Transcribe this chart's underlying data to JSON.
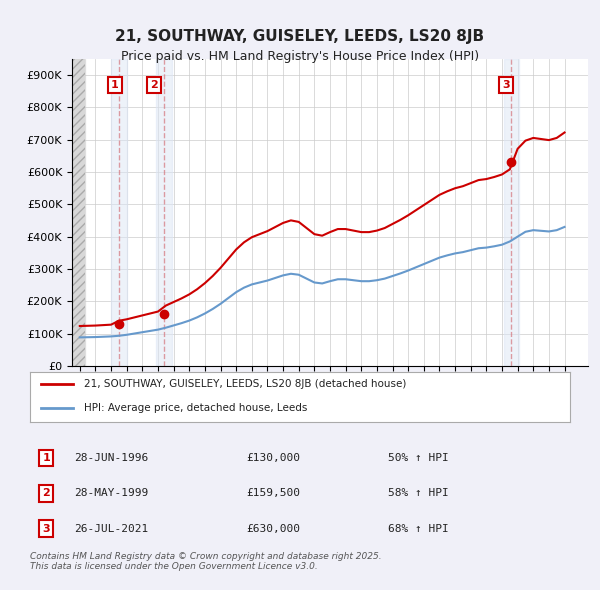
{
  "title1": "21, SOUTHWAY, GUISELEY, LEEDS, LS20 8JB",
  "title2": "Price paid vs. HM Land Registry's House Price Index (HPI)",
  "bg_color": "#f0f0f8",
  "plot_bg": "#ffffff",
  "red_color": "#cc0000",
  "blue_color": "#6699cc",
  "shade_color": "#dce6f5",
  "transaction_dates": [
    1996.49,
    1999.41,
    2021.56
  ],
  "transaction_prices": [
    130000,
    159500,
    630000
  ],
  "transaction_labels": [
    "1",
    "2",
    "3"
  ],
  "legend_line1": "21, SOUTHWAY, GUISELEY, LEEDS, LS20 8JB (detached house)",
  "legend_line2": "HPI: Average price, detached house, Leeds",
  "table_rows": [
    [
      "1",
      "28-JUN-1996",
      "£130,000",
      "50% ↑ HPI"
    ],
    [
      "2",
      "28-MAY-1999",
      "£159,500",
      "58% ↑ HPI"
    ],
    [
      "3",
      "26-JUL-2021",
      "£630,000",
      "68% ↑ HPI"
    ]
  ],
  "footer": "Contains HM Land Registry data © Crown copyright and database right 2025.\nThis data is licensed under the Open Government Licence v3.0.",
  "ylim": [
    0,
    950000
  ],
  "yticks": [
    0,
    100000,
    200000,
    300000,
    400000,
    500000,
    600000,
    700000,
    800000,
    900000
  ],
  "ytick_labels": [
    "£0",
    "£100K",
    "£200K",
    "£300K",
    "£400K",
    "£500K",
    "£600K",
    "£700K",
    "£800K",
    "£900K"
  ],
  "xlim_start": 1993.5,
  "xlim_end": 2026.5
}
